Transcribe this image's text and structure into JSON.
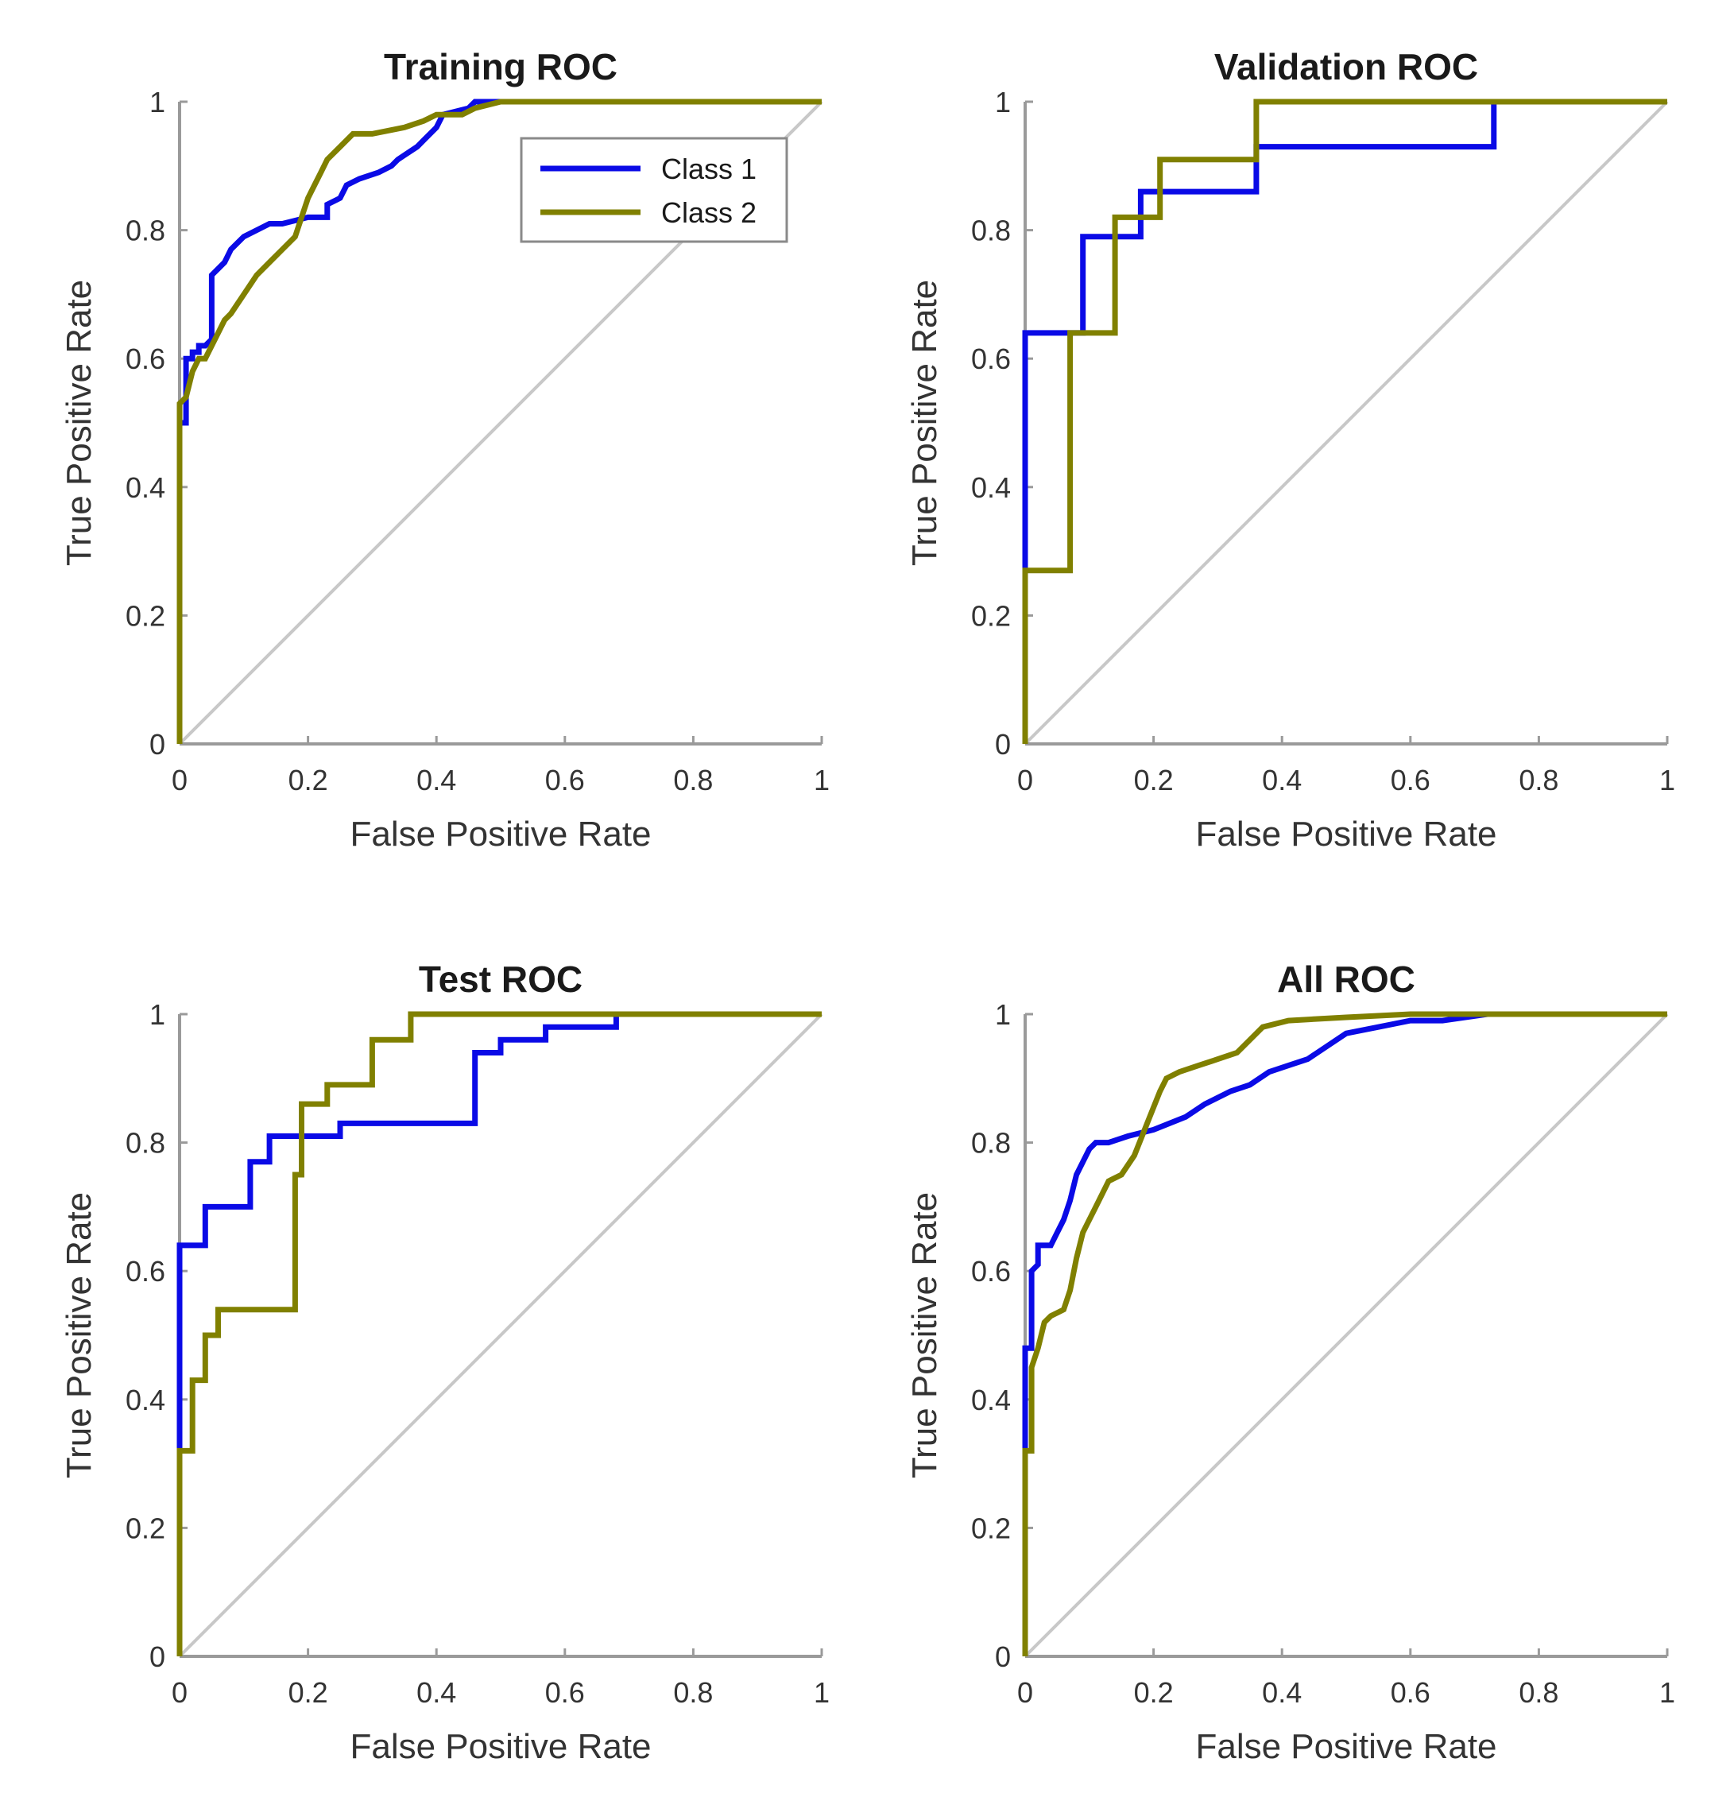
{
  "colors": {
    "class1": "#0a0ae6",
    "class2": "#808000",
    "diagonal": "#c8c8c8",
    "axis": "#9a9a9a"
  },
  "chart_data": [
    {
      "type": "line",
      "title": "Training ROC",
      "xlabel": "False Positive Rate",
      "ylabel": "True Positive Rate",
      "xlim": [
        0,
        1
      ],
      "ylim": [
        0,
        1
      ],
      "xticks": [
        "0",
        "0.2",
        "0.4",
        "0.6",
        "0.8",
        "1"
      ],
      "yticks": [
        "0",
        "0.2",
        "0.4",
        "0.6",
        "0.8",
        "1"
      ],
      "legend": {
        "placement": "top-right",
        "entries": [
          "Class 1",
          "Class 2"
        ]
      },
      "series": [
        {
          "name": "Class 1",
          "x": [
            0,
            0,
            0.01,
            0.01,
            0.02,
            0.02,
            0.03,
            0.03,
            0.04,
            0.05,
            0.05,
            0.06,
            0.07,
            0.08,
            0.09,
            0.1,
            0.12,
            0.14,
            0.16,
            0.2,
            0.23,
            0.23,
            0.25,
            0.26,
            0.28,
            0.31,
            0.33,
            0.34,
            0.37,
            0.38,
            0.4,
            0.41,
            0.45,
            0.46,
            0.5,
            1
          ],
          "y": [
            0,
            0.5,
            0.5,
            0.6,
            0.6,
            0.61,
            0.61,
            0.62,
            0.62,
            0.63,
            0.73,
            0.74,
            0.75,
            0.77,
            0.78,
            0.79,
            0.8,
            0.81,
            0.81,
            0.82,
            0.82,
            0.84,
            0.85,
            0.87,
            0.88,
            0.89,
            0.9,
            0.91,
            0.93,
            0.94,
            0.96,
            0.98,
            0.99,
            1,
            1,
            1
          ]
        },
        {
          "name": "Class 2",
          "x": [
            0,
            0,
            0.01,
            0.02,
            0.03,
            0.04,
            0.05,
            0.06,
            0.07,
            0.08,
            0.1,
            0.12,
            0.14,
            0.16,
            0.18,
            0.19,
            0.2,
            0.21,
            0.22,
            0.23,
            0.25,
            0.27,
            0.3,
            0.35,
            0.38,
            0.4,
            0.44,
            0.46,
            0.5,
            1
          ],
          "y": [
            0,
            0.53,
            0.54,
            0.58,
            0.6,
            0.6,
            0.62,
            0.64,
            0.66,
            0.67,
            0.7,
            0.73,
            0.75,
            0.77,
            0.79,
            0.82,
            0.85,
            0.87,
            0.89,
            0.91,
            0.93,
            0.95,
            0.95,
            0.96,
            0.97,
            0.98,
            0.98,
            0.99,
            1,
            1
          ]
        }
      ]
    },
    {
      "type": "line",
      "title": "Validation ROC",
      "xlabel": "False Positive Rate",
      "ylabel": "True Positive Rate",
      "xlim": [
        0,
        1
      ],
      "ylim": [
        0,
        1
      ],
      "xticks": [
        "0",
        "0.2",
        "0.4",
        "0.6",
        "0.8",
        "1"
      ],
      "yticks": [
        "0",
        "0.2",
        "0.4",
        "0.6",
        "0.8",
        "1"
      ],
      "series": [
        {
          "name": "Class 1",
          "x": [
            0,
            0,
            0,
            0.09,
            0.09,
            0.18,
            0.18,
            0.36,
            0.36,
            0.73,
            0.73,
            1
          ],
          "y": [
            0,
            0.29,
            0.64,
            0.64,
            0.79,
            0.79,
            0.86,
            0.86,
            0.93,
            0.93,
            1,
            1
          ]
        },
        {
          "name": "Class 2",
          "x": [
            0,
            0,
            0.07,
            0.07,
            0.14,
            0.14,
            0.21,
            0.21,
            0.36,
            0.36,
            1
          ],
          "y": [
            0,
            0.27,
            0.27,
            0.64,
            0.64,
            0.82,
            0.82,
            0.91,
            0.91,
            1,
            1
          ]
        }
      ]
    },
    {
      "type": "line",
      "title": "Test ROC",
      "xlabel": "False Positive Rate",
      "ylabel": "True Positive Rate",
      "xlim": [
        0,
        1
      ],
      "ylim": [
        0,
        1
      ],
      "xticks": [
        "0",
        "0.2",
        "0.4",
        "0.6",
        "0.8",
        "1"
      ],
      "yticks": [
        "0",
        "0.2",
        "0.4",
        "0.6",
        "0.8",
        "1"
      ],
      "series": [
        {
          "name": "Class 1",
          "x": [
            0,
            0,
            0,
            0.04,
            0.04,
            0.11,
            0.11,
            0.14,
            0.14,
            0.25,
            0.25,
            0.46,
            0.46,
            0.5,
            0.5,
            0.57,
            0.57,
            0.68,
            0.68,
            1
          ],
          "y": [
            0,
            0.33,
            0.64,
            0.64,
            0.7,
            0.7,
            0.77,
            0.77,
            0.81,
            0.81,
            0.83,
            0.83,
            0.94,
            0.94,
            0.96,
            0.96,
            0.98,
            0.98,
            1,
            1
          ]
        },
        {
          "name": "Class 2",
          "x": [
            0,
            0,
            0.02,
            0.02,
            0.04,
            0.04,
            0.06,
            0.06,
            0.18,
            0.18,
            0.19,
            0.19,
            0.23,
            0.23,
            0.3,
            0.3,
            0.36,
            0.36,
            1
          ],
          "y": [
            0,
            0.32,
            0.32,
            0.43,
            0.43,
            0.5,
            0.5,
            0.54,
            0.54,
            0.75,
            0.75,
            0.86,
            0.86,
            0.89,
            0.89,
            0.96,
            0.96,
            1,
            1
          ]
        }
      ]
    },
    {
      "type": "line",
      "title": "All ROC",
      "xlabel": "False Positive Rate",
      "ylabel": "True Positive Rate",
      "xlim": [
        0,
        1
      ],
      "ylim": [
        0,
        1
      ],
      "xticks": [
        "0",
        "0.2",
        "0.4",
        "0.6",
        "0.8",
        "1"
      ],
      "yticks": [
        "0",
        "0.2",
        "0.4",
        "0.6",
        "0.8",
        "1"
      ],
      "series": [
        {
          "name": "Class 1",
          "x": [
            0,
            0,
            0,
            0.01,
            0.01,
            0.02,
            0.02,
            0.04,
            0.05,
            0.06,
            0.07,
            0.08,
            0.09,
            0.1,
            0.11,
            0.13,
            0.16,
            0.2,
            0.25,
            0.28,
            0.32,
            0.35,
            0.38,
            0.41,
            0.44,
            0.47,
            0.5,
            0.55,
            0.6,
            0.65,
            0.72,
            1
          ],
          "y": [
            0,
            0.29,
            0.48,
            0.48,
            0.6,
            0.61,
            0.64,
            0.64,
            0.66,
            0.68,
            0.71,
            0.75,
            0.77,
            0.79,
            0.8,
            0.8,
            0.81,
            0.82,
            0.84,
            0.86,
            0.88,
            0.89,
            0.91,
            0.92,
            0.93,
            0.95,
            0.97,
            0.98,
            0.99,
            0.99,
            1,
            1
          ]
        },
        {
          "name": "Class 2",
          "x": [
            0,
            0,
            0.01,
            0.01,
            0.02,
            0.03,
            0.04,
            0.06,
            0.07,
            0.08,
            0.09,
            0.1,
            0.11,
            0.12,
            0.13,
            0.15,
            0.17,
            0.19,
            0.21,
            0.22,
            0.24,
            0.27,
            0.3,
            0.33,
            0.35,
            0.37,
            0.41,
            0.5,
            0.6,
            1
          ],
          "y": [
            0,
            0.32,
            0.32,
            0.45,
            0.48,
            0.52,
            0.53,
            0.54,
            0.57,
            0.62,
            0.66,
            0.68,
            0.7,
            0.72,
            0.74,
            0.75,
            0.78,
            0.83,
            0.88,
            0.9,
            0.91,
            0.92,
            0.93,
            0.94,
            0.96,
            0.98,
            0.99,
            0.995,
            1,
            1
          ]
        }
      ]
    }
  ]
}
